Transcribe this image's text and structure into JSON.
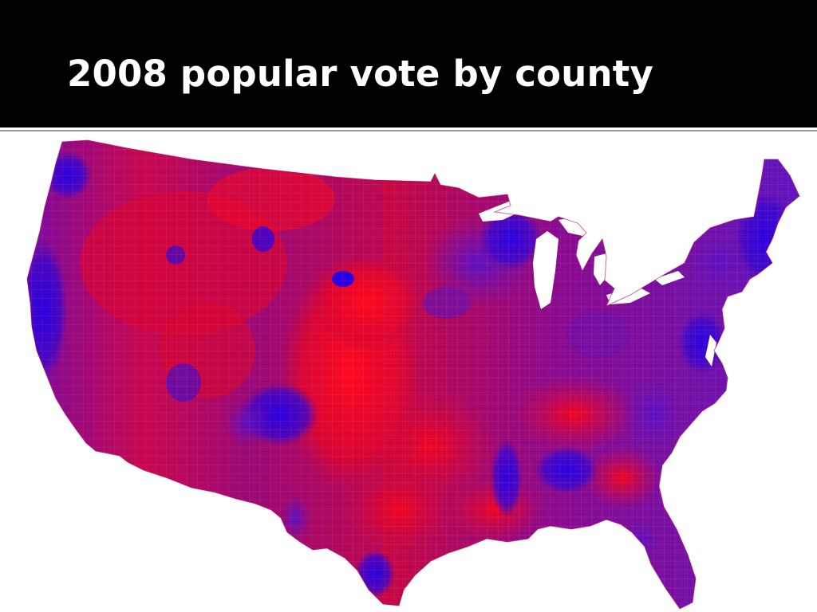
{
  "slide": {
    "title": "2008 popular vote by county"
  },
  "map": {
    "subject": "United States counties",
    "colors": {
      "republican": "#e8001c",
      "democratic": "#2a00d8",
      "mixed": "#7a0aa0",
      "background": "#ffffff",
      "title_bar": "#000000",
      "title_text": "#ffffff"
    }
  }
}
